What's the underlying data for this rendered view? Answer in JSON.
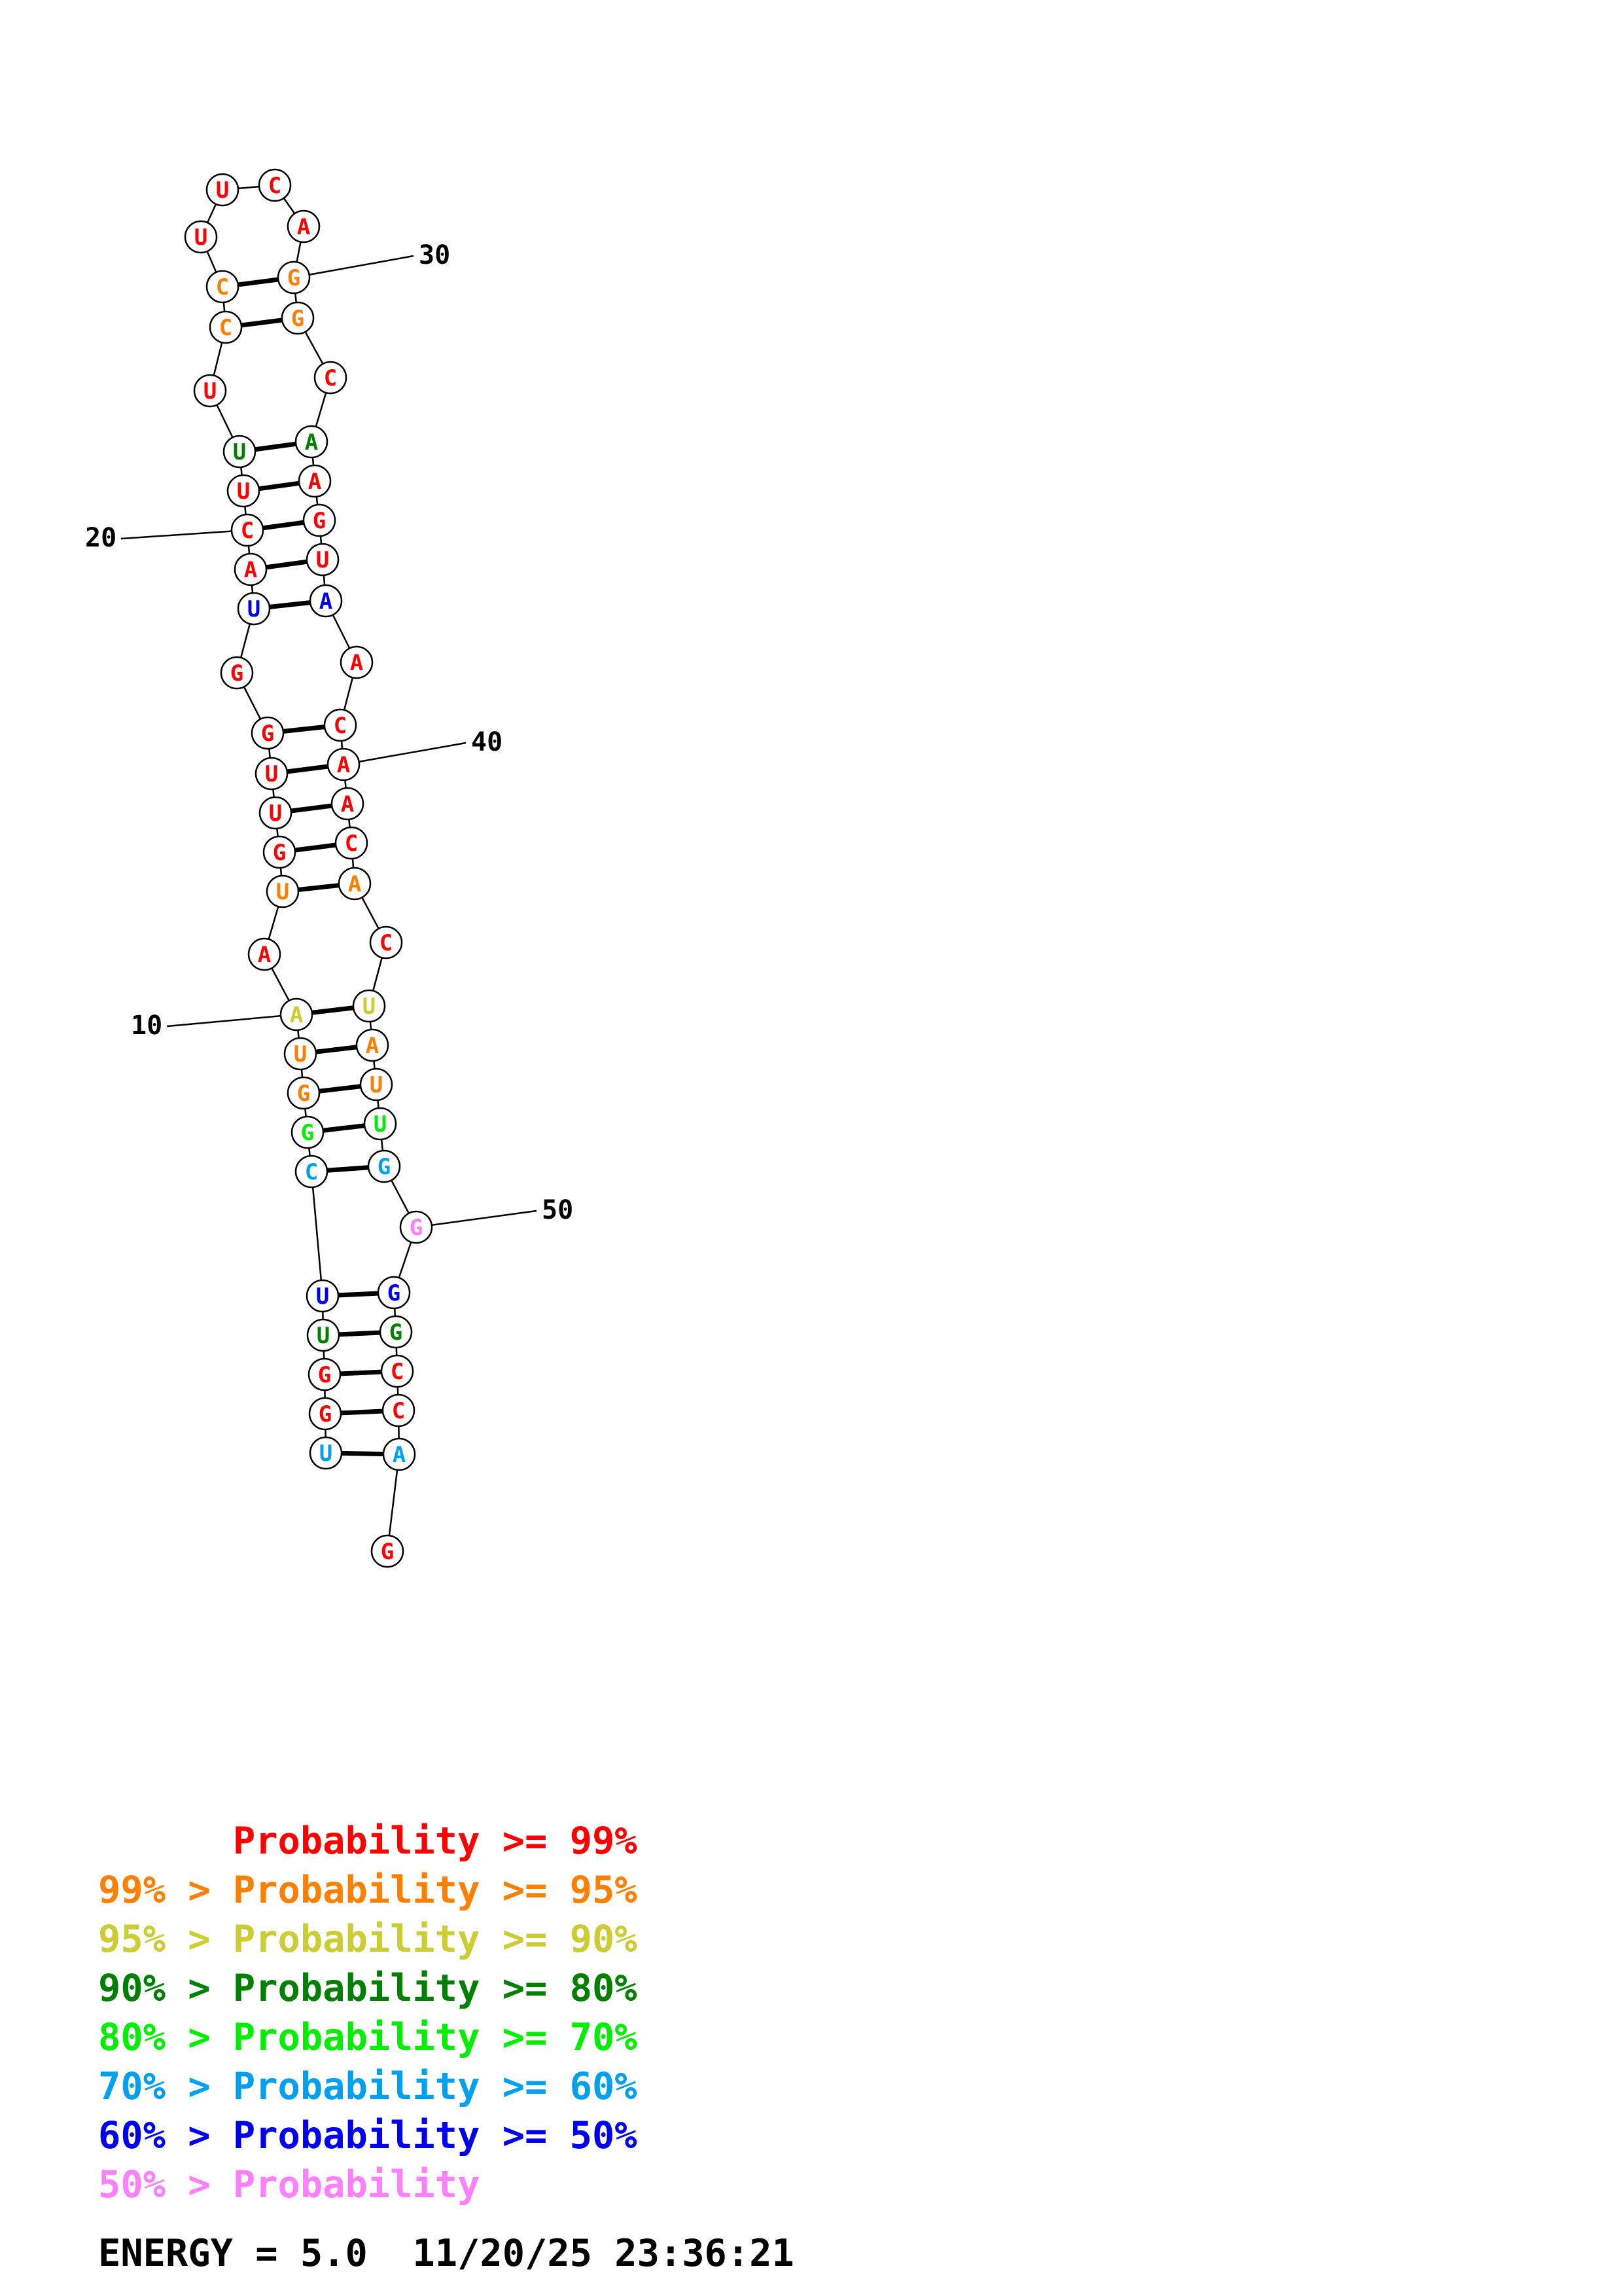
{
  "legend": [
    {
      "text": "      Probability >= 99%",
      "color": "#ff0000"
    },
    {
      "text": "99% > Probability >= 95%",
      "color": "#ff8000"
    },
    {
      "text": "95% > Probability >= 90%",
      "color": "#cccc33"
    },
    {
      "text": "90% > Probability >= 80%",
      "color": "#008000"
    },
    {
      "text": "80% > Probability >= 70%",
      "color": "#00ee00"
    },
    {
      "text": "70% > Probability >= 60%",
      "color": "#00a0ee"
    },
    {
      "text": "60% > Probability >= 50%",
      "color": "#0000ee"
    },
    {
      "text": "50% > Probability",
      "color": "#ff80ff"
    }
  ],
  "footer": {
    "energy": "ENERGY = 5.0  11/20/25 23:36:21"
  },
  "structure": {
    "nucleotides": [
      {
        "i": 1,
        "base": "U",
        "color": "#00a0ee"
      },
      {
        "i": 2,
        "base": "G",
        "color": "#ff0000"
      },
      {
        "i": 3,
        "base": "G",
        "color": "#ff0000"
      },
      {
        "i": 4,
        "base": "U",
        "color": "#008000"
      },
      {
        "i": 5,
        "base": "U",
        "color": "#0000ee"
      },
      {
        "i": 6,
        "base": "C",
        "color": "#00a0ee"
      },
      {
        "i": 7,
        "base": "G",
        "color": "#00ee00"
      },
      {
        "i": 8,
        "base": "G",
        "color": "#ff8000"
      },
      {
        "i": 9,
        "base": "U",
        "color": "#ff8000"
      },
      {
        "i": 10,
        "base": "A",
        "color": "#cccc33"
      },
      {
        "i": 11,
        "base": "A",
        "color": "#ff0000"
      },
      {
        "i": 12,
        "base": "U",
        "color": "#ff8000"
      },
      {
        "i": 13,
        "base": "G",
        "color": "#ff0000"
      },
      {
        "i": 14,
        "base": "U",
        "color": "#ff0000"
      },
      {
        "i": 15,
        "base": "U",
        "color": "#ff0000"
      },
      {
        "i": 16,
        "base": "G",
        "color": "#ff0000"
      },
      {
        "i": 17,
        "base": "G",
        "color": "#ff0000"
      },
      {
        "i": 18,
        "base": "U",
        "color": "#0000ee"
      },
      {
        "i": 19,
        "base": "A",
        "color": "#ff0000"
      },
      {
        "i": 20,
        "base": "C",
        "color": "#ff0000"
      },
      {
        "i": 21,
        "base": "U",
        "color": "#ff0000"
      },
      {
        "i": 22,
        "base": "U",
        "color": "#008000"
      },
      {
        "i": 23,
        "base": "U",
        "color": "#ff0000"
      },
      {
        "i": 24,
        "base": "C",
        "color": "#ff8000"
      },
      {
        "i": 25,
        "base": "C",
        "color": "#ff8000"
      },
      {
        "i": 26,
        "base": "U",
        "color": "#ff0000"
      },
      {
        "i": 27,
        "base": "U",
        "color": "#ff0000"
      },
      {
        "i": 28,
        "base": "C",
        "color": "#ff0000"
      },
      {
        "i": 29,
        "base": "A",
        "color": "#ff0000"
      },
      {
        "i": 30,
        "base": "G",
        "color": "#ff8000"
      },
      {
        "i": 31,
        "base": "G",
        "color": "#ff8000"
      },
      {
        "i": 32,
        "base": "C",
        "color": "#ff0000"
      },
      {
        "i": 33,
        "base": "A",
        "color": "#008000"
      },
      {
        "i": 34,
        "base": "A",
        "color": "#ff0000"
      },
      {
        "i": 35,
        "base": "G",
        "color": "#ff0000"
      },
      {
        "i": 36,
        "base": "U",
        "color": "#ff0000"
      },
      {
        "i": 37,
        "base": "A",
        "color": "#0000ee"
      },
      {
        "i": 38,
        "base": "A",
        "color": "#ff0000"
      },
      {
        "i": 39,
        "base": "C",
        "color": "#ff0000"
      },
      {
        "i": 40,
        "base": "A",
        "color": "#ff0000"
      },
      {
        "i": 41,
        "base": "A",
        "color": "#ff0000"
      },
      {
        "i": 42,
        "base": "C",
        "color": "#ff0000"
      },
      {
        "i": 43,
        "base": "A",
        "color": "#ff8000"
      },
      {
        "i": 44,
        "base": "C",
        "color": "#ff0000"
      },
      {
        "i": 45,
        "base": "U",
        "color": "#cccc33"
      },
      {
        "i": 46,
        "base": "A",
        "color": "#ff8000"
      },
      {
        "i": 47,
        "base": "U",
        "color": "#ff8000"
      },
      {
        "i": 48,
        "base": "U",
        "color": "#00ee00"
      },
      {
        "i": 49,
        "base": "G",
        "color": "#00a0ee"
      },
      {
        "i": 50,
        "base": "G",
        "color": "#ff80ff"
      },
      {
        "i": 51,
        "base": "G",
        "color": "#0000ee"
      },
      {
        "i": 52,
        "base": "G",
        "color": "#008000"
      },
      {
        "i": 53,
        "base": "C",
        "color": "#ff0000"
      },
      {
        "i": 54,
        "base": "C",
        "color": "#ff0000"
      },
      {
        "i": 55,
        "base": "A",
        "color": "#00a0ee"
      },
      {
        "i": 56,
        "base": "G",
        "color": "#ff0000"
      }
    ],
    "pairs": [
      [
        1,
        55
      ],
      [
        2,
        54
      ],
      [
        3,
        53
      ],
      [
        4,
        52
      ],
      [
        5,
        51
      ],
      [
        6,
        49
      ],
      [
        7,
        48
      ],
      [
        8,
        47
      ],
      [
        9,
        46
      ],
      [
        10,
        45
      ],
      [
        12,
        43
      ],
      [
        13,
        42
      ],
      [
        14,
        41
      ],
      [
        15,
        40
      ],
      [
        16,
        39
      ],
      [
        18,
        37
      ],
      [
        19,
        36
      ],
      [
        20,
        35
      ],
      [
        21,
        34
      ],
      [
        22,
        33
      ],
      [
        24,
        31
      ],
      [
        25,
        30
      ]
    ],
    "index_labels": [
      {
        "i": 10,
        "text": "10"
      },
      {
        "i": 20,
        "text": "20"
      },
      {
        "i": 30,
        "text": "30"
      },
      {
        "i": 40,
        "text": "40"
      },
      {
        "i": 50,
        "text": "50"
      }
    ]
  }
}
